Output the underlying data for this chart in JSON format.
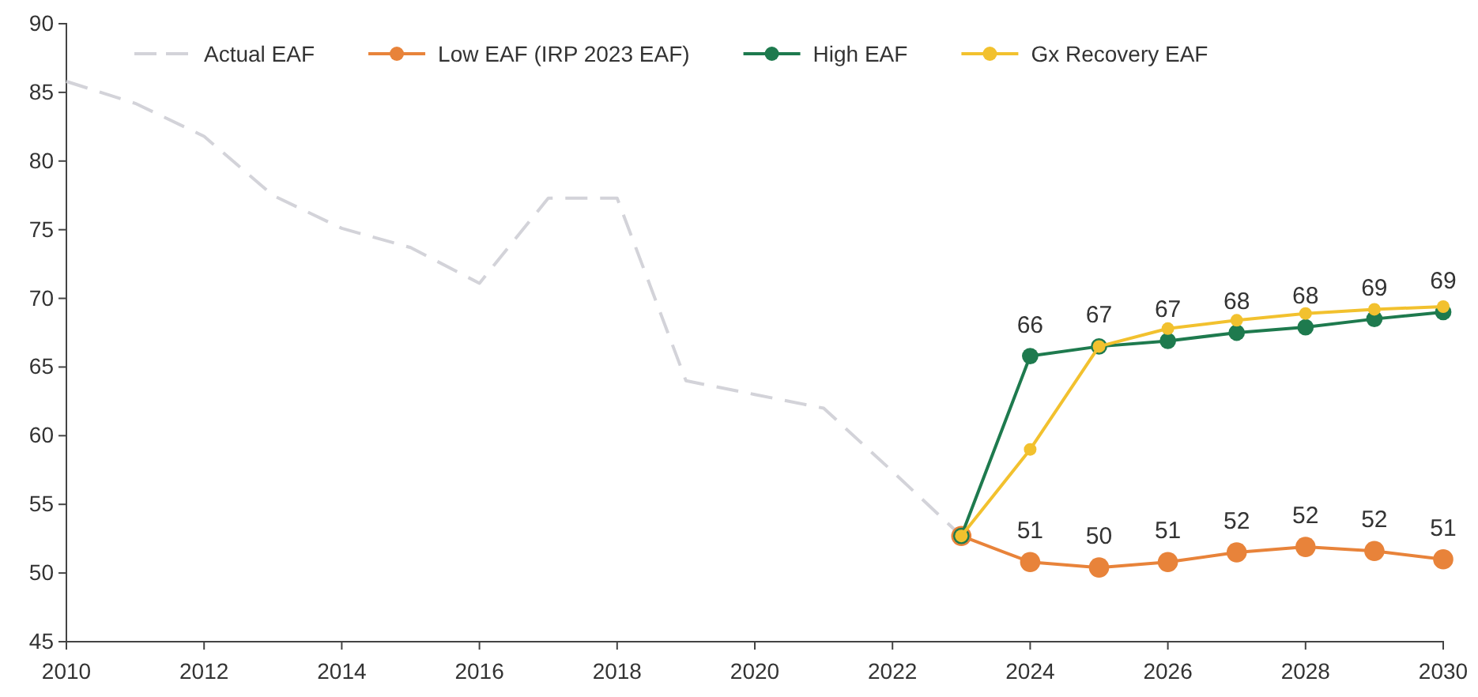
{
  "chart_data": {
    "type": "line",
    "xlim": [
      2010,
      2030
    ],
    "xticks": [
      2010,
      2012,
      2014,
      2016,
      2018,
      2020,
      2022,
      2024,
      2026,
      2028,
      2030
    ],
    "ylim": [
      45,
      90
    ],
    "yticks": [
      45,
      50,
      55,
      60,
      65,
      70,
      75,
      80,
      85,
      90
    ],
    "grid": false,
    "legend": "top",
    "series": [
      {
        "name": "Actual EAF",
        "color": "#d3d3d9",
        "line_style": "dashed",
        "marker": "none",
        "x": [
          2010,
          2011,
          2012,
          2013,
          2014,
          2015,
          2016,
          2017,
          2018,
          2019,
          2020,
          2021,
          2022,
          2023
        ],
        "values": [
          85.8,
          84.2,
          81.8,
          77.5,
          75.1,
          73.7,
          71.1,
          77.3,
          77.3,
          64.0,
          63.0,
          62.0,
          57.4,
          52.7
        ]
      },
      {
        "name": "Low EAF (IRP 2023 EAF)",
        "color": "#e8833a",
        "line_style": "solid",
        "marker": "circle",
        "x": [
          2023,
          2024,
          2025,
          2026,
          2027,
          2028,
          2029,
          2030
        ],
        "values": [
          52.7,
          50.8,
          50.4,
          50.8,
          51.5,
          51.9,
          51.6,
          51.0
        ],
        "value_labels": [
          null,
          "51",
          "50",
          "51",
          "52",
          "52",
          "52",
          "51"
        ]
      },
      {
        "name": "High EAF",
        "color": "#1e7a4e",
        "line_style": "solid",
        "marker": "circle",
        "x": [
          2023,
          2024,
          2025,
          2026,
          2027,
          2028,
          2029,
          2030
        ],
        "values": [
          52.7,
          65.8,
          66.5,
          66.9,
          67.5,
          67.9,
          68.5,
          69.0
        ],
        "value_labels": [
          null,
          "66",
          "67",
          "67",
          "68",
          "68",
          "69",
          "69"
        ]
      },
      {
        "name": "Gx Recovery EAF",
        "color": "#f2c12e",
        "line_style": "solid",
        "marker": "circle",
        "x": [
          2023,
          2024,
          2025,
          2026,
          2027,
          2028,
          2029,
          2030
        ],
        "values": [
          52.7,
          59.0,
          66.5,
          67.8,
          68.4,
          68.9,
          69.2,
          69.4
        ]
      }
    ]
  }
}
